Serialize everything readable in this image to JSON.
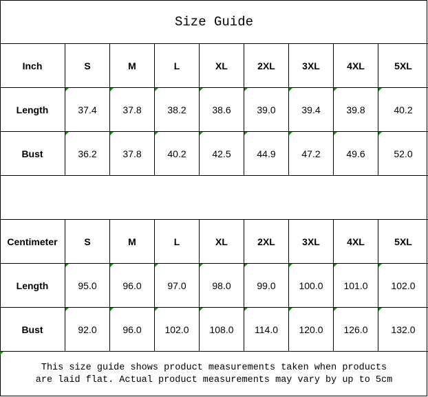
{
  "title": "Size Guide",
  "sizes": [
    "S",
    "M",
    "L",
    "XL",
    "2XL",
    "3XL",
    "4XL",
    "5XL"
  ],
  "tables": [
    {
      "unit": "Inch",
      "rows": [
        {
          "label": "Length",
          "values": [
            "37.4",
            "37.8",
            "38.2",
            "38.6",
            "39.0",
            "39.4",
            "39.8",
            "40.2"
          ]
        },
        {
          "label": "Bust",
          "values": [
            "36.2",
            "37.8",
            "40.2",
            "42.5",
            "44.9",
            "47.2",
            "49.6",
            "52.0"
          ]
        }
      ]
    },
    {
      "unit": "Centimeter",
      "rows": [
        {
          "label": "Length",
          "values": [
            "95.0",
            "96.0",
            "97.0",
            "98.0",
            "99.0",
            "100.0",
            "101.0",
            "102.0"
          ]
        },
        {
          "label": "Bust",
          "values": [
            "92.0",
            "96.0",
            "102.0",
            "108.0",
            "114.0",
            "120.0",
            "126.0",
            "132.0"
          ]
        }
      ]
    }
  ],
  "note": {
    "line1": "This size guide shows product measurements taken when products",
    "line2": "are laid flat. Actual product measurements may vary by up to 5cm"
  },
  "colors": {
    "indicator": "#1a8a1a",
    "border": "#000000"
  }
}
